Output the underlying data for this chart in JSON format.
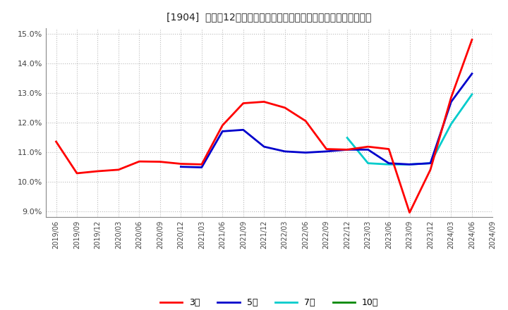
{
  "title": "[1904]  売上高12か月移動合計の対前年同期増減率の標準偏差の推移",
  "ylim": [
    0.088,
    0.152
  ],
  "yticks": [
    0.09,
    0.1,
    0.11,
    0.12,
    0.13,
    0.14,
    0.15
  ],
  "ytick_labels": [
    "9.0%",
    "10.0%",
    "11.0%",
    "12.0%",
    "13.0%",
    "14.0%",
    "15.0%"
  ],
  "background_color": "#ffffff",
  "grid_color": "#aaaaaa",
  "x_labels": [
    "2019/06",
    "2019/09",
    "2019/12",
    "2020/03",
    "2020/06",
    "2020/09",
    "2020/12",
    "2021/03",
    "2021/06",
    "2021/09",
    "2021/12",
    "2022/03",
    "2022/06",
    "2022/09",
    "2022/12",
    "2023/03",
    "2023/06",
    "2023/09",
    "2023/12",
    "2024/03",
    "2024/06",
    "2024/09"
  ],
  "series_3year": {
    "color": "#ff0000",
    "label": "3年",
    "x": [
      0,
      1,
      2,
      3,
      4,
      5,
      6,
      7,
      8,
      9,
      10,
      11,
      12,
      13,
      14,
      15,
      16,
      17,
      18,
      19,
      20
    ],
    "y": [
      0.1135,
      0.1028,
      0.1035,
      0.104,
      0.1068,
      0.1067,
      0.106,
      0.1058,
      0.119,
      0.1265,
      0.127,
      0.125,
      0.1205,
      0.111,
      0.1108,
      0.1118,
      0.111,
      0.0895,
      0.104,
      0.1285,
      0.148
    ]
  },
  "series_5year": {
    "color": "#0000cc",
    "label": "5年",
    "x": [
      6,
      7,
      8,
      9,
      10,
      11,
      12,
      13,
      14,
      15,
      16,
      17,
      18,
      19,
      20
    ],
    "y": [
      0.105,
      0.1048,
      0.117,
      0.1175,
      0.1118,
      0.1102,
      0.1098,
      0.1102,
      0.1108,
      0.1108,
      0.1062,
      0.1058,
      0.1062,
      0.127,
      0.1365
    ]
  },
  "series_7year": {
    "color": "#00cccc",
    "label": "7年",
    "x": [
      14,
      15,
      16,
      17,
      18,
      19,
      20
    ],
    "y": [
      0.1148,
      0.1062,
      0.1058,
      0.1058,
      0.1062,
      0.1195,
      0.1295
    ]
  },
  "series_10year": {
    "color": "#008800",
    "label": "10年",
    "x": [],
    "y": []
  },
  "legend_entries": [
    "3年",
    "5年",
    "7年",
    "10年"
  ],
  "legend_colors": [
    "#ff0000",
    "#0000cc",
    "#00cccc",
    "#008800"
  ]
}
